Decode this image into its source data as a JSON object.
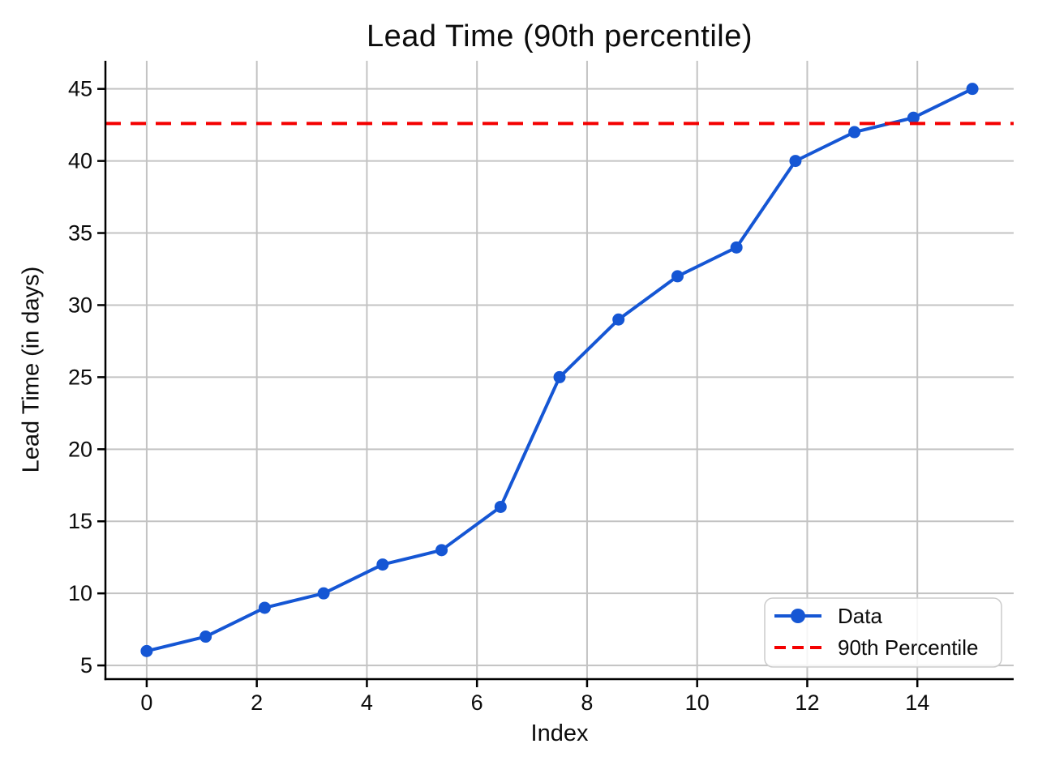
{
  "chart_data": {
    "type": "line",
    "title": "Lead Time (90th percentile)",
    "xlabel": "Index",
    "ylabel": "Lead Time (in days)",
    "x": [
      0,
      1.071,
      2.143,
      3.214,
      4.286,
      5.357,
      6.429,
      7.5,
      8.571,
      9.643,
      10.714,
      11.786,
      12.857,
      13.929,
      15
    ],
    "series": [
      {
        "name": "Data",
        "values": [
          6,
          7,
          9,
          10,
          12,
          13,
          16,
          25,
          29,
          32,
          34,
          40,
          42,
          43,
          45
        ],
        "color": "#1556d4",
        "marker": "circle",
        "line_width": 4,
        "marker_radius": 7.5
      }
    ],
    "reference_lines": [
      {
        "name": "90th Percentile",
        "value": 42.6,
        "color": "#f40000",
        "style": "dashed",
        "line_width": 4
      }
    ],
    "xticks": [
      0,
      2,
      4,
      6,
      8,
      10,
      12,
      14
    ],
    "yticks": [
      5,
      10,
      15,
      20,
      25,
      30,
      35,
      40,
      45
    ],
    "xlim": [
      -0.75,
      15.75
    ],
    "ylim": [
      4.05,
      46.95
    ],
    "grid": true,
    "legend": {
      "position": "lower right",
      "entries": [
        "Data",
        "90th Percentile"
      ]
    },
    "colors": {
      "grid": "#c3c3c3",
      "axis": "#000000",
      "tick_text": "#0c0c0c",
      "background": "#ffffff",
      "legend_border": "#cccccc"
    }
  }
}
